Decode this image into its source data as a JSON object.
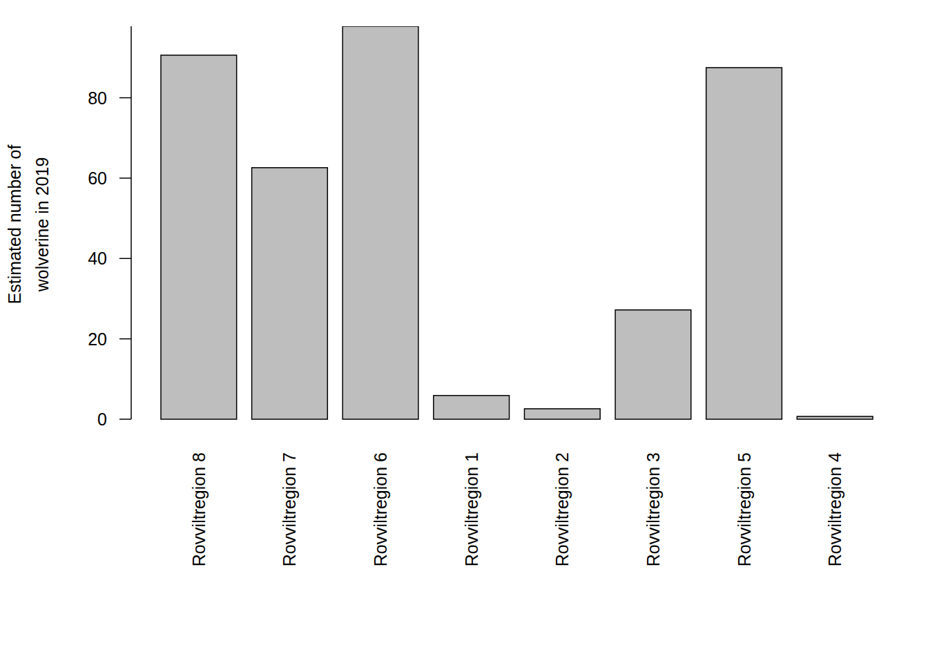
{
  "chart_data": {
    "type": "bar",
    "y_label": "Estimated number of\nwolverine in 2019",
    "categories": [
      "Rovviltregion 8",
      "Rovviltregion 7",
      "Rovviltregion 6",
      "Rovviltregion 1",
      "Rovviltregion 2",
      "Rovviltregion 3",
      "Rovviltregion 5",
      "Rovviltregion 4"
    ],
    "values": [
      90.6,
      62.6,
      97.8,
      5.9,
      2.6,
      27.2,
      87.5,
      0.7
    ],
    "color": "#bebebe",
    "ylim": [
      0,
      97.8
    ],
    "yticks": [
      0,
      20,
      40,
      60,
      80
    ],
    "grid": false
  }
}
